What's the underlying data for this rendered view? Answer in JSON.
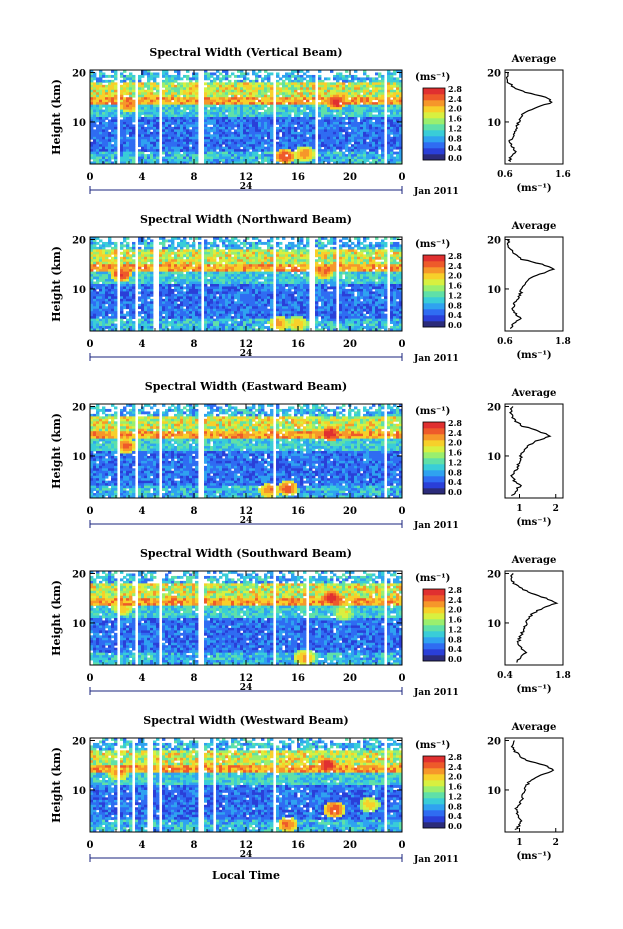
{
  "figure": {
    "date_label": "Jan 2011",
    "day_label": "24",
    "xlabel_bottom": "Local Time",
    "colorbar_unit": "(ms⁻¹)",
    "colorbar_ticks": [
      "0.0",
      "0.4",
      "0.8",
      "1.2",
      "1.6",
      "2.0",
      "2.4",
      "2.8"
    ],
    "colormap": [
      "#2b2b7a",
      "#2a3fd8",
      "#2f6cf2",
      "#2fa2f0",
      "#39cdd8",
      "#5fe0a8",
      "#9aef6e",
      "#d8f040",
      "#f7d02a",
      "#f6972a",
      "#ee5a2a",
      "#e03030"
    ],
    "avg_title": "Average",
    "avg_xunit": "(ms⁻¹)"
  },
  "chart_data": [
    {
      "type": "heatmap",
      "title": "Spectral Width (Vertical Beam)",
      "ylabel": "Height (km)",
      "x_ticks": [
        "0",
        "4",
        "8",
        "12",
        "16",
        "20",
        "0"
      ],
      "y_ticks": [
        "20",
        "10"
      ],
      "xlim": [
        0,
        24
      ],
      "ylim": [
        1.5,
        20.5
      ],
      "gaps_hours": [
        [
          2.0,
          2.3
        ],
        [
          3.4,
          3.6
        ],
        [
          5.3,
          5.6
        ],
        [
          8.4,
          8.8
        ],
        [
          14.1,
          14.4
        ],
        [
          17.2,
          17.5
        ],
        [
          22.6,
          22.9
        ]
      ],
      "hotspots": [
        {
          "t": 19.0,
          "h": 14.0,
          "v": 2.7
        },
        {
          "t": 15.0,
          "h": 3.0,
          "v": 2.6
        },
        {
          "t": 3.0,
          "h": 13.5,
          "v": 2.4
        },
        {
          "t": 16.5,
          "h": 3.5,
          "v": 2.3
        }
      ],
      "average_profile": {
        "xlim": [
          0.6,
          1.6
        ],
        "x_ticks": [
          "0.6",
          "1.6"
        ],
        "y_ticks": [
          "20",
          "10"
        ],
        "points": [
          [
            0.68,
            2
          ],
          [
            0.7,
            3
          ],
          [
            0.78,
            4
          ],
          [
            0.72,
            5
          ],
          [
            0.68,
            6
          ],
          [
            0.74,
            7
          ],
          [
            0.78,
            8
          ],
          [
            0.8,
            9
          ],
          [
            0.84,
            10
          ],
          [
            0.86,
            11
          ],
          [
            0.96,
            12
          ],
          [
            1.15,
            13
          ],
          [
            1.42,
            14
          ],
          [
            1.3,
            15
          ],
          [
            0.95,
            16
          ],
          [
            0.75,
            17
          ],
          [
            0.66,
            18
          ],
          [
            0.62,
            19
          ],
          [
            0.66,
            20
          ]
        ]
      }
    },
    {
      "type": "heatmap",
      "title": "Spectral Width (Northward Beam)",
      "ylabel": "Height (km)",
      "x_ticks": [
        "0",
        "4",
        "8",
        "12",
        "16",
        "20",
        "0"
      ],
      "y_ticks": [
        "20",
        "10"
      ],
      "xlim": [
        0,
        24
      ],
      "ylim": [
        1.5,
        20.5
      ],
      "gaps_hours": [
        [
          2.1,
          2.4
        ],
        [
          3.5,
          3.7
        ],
        [
          4.9,
          5.2
        ],
        [
          8.5,
          8.8
        ],
        [
          14.1,
          14.4
        ],
        [
          16.9,
          17.2
        ],
        [
          18.9,
          19.2
        ],
        [
          22.8,
          23.0
        ]
      ],
      "hotspots": [
        {
          "t": 2.4,
          "h": 13.0,
          "v": 2.6
        },
        {
          "t": 18.0,
          "h": 13.5,
          "v": 2.4
        },
        {
          "t": 14.5,
          "h": 3.0,
          "v": 2.2
        },
        {
          "t": 16.0,
          "h": 3.0,
          "v": 2.0
        }
      ],
      "average_profile": {
        "xlim": [
          0.6,
          1.8
        ],
        "x_ticks": [
          "0.6",
          "1.8"
        ],
        "y_ticks": [
          "20",
          "10"
        ],
        "points": [
          [
            0.72,
            2
          ],
          [
            0.78,
            3
          ],
          [
            0.92,
            4
          ],
          [
            0.82,
            5
          ],
          [
            0.76,
            6
          ],
          [
            0.8,
            7
          ],
          [
            0.86,
            8
          ],
          [
            0.92,
            9
          ],
          [
            0.94,
            10
          ],
          [
            1.0,
            11
          ],
          [
            1.1,
            12
          ],
          [
            1.32,
            13
          ],
          [
            1.62,
            14
          ],
          [
            1.35,
            15
          ],
          [
            0.95,
            16
          ],
          [
            0.8,
            17
          ],
          [
            0.72,
            18
          ],
          [
            0.64,
            19
          ],
          [
            0.7,
            20
          ]
        ]
      }
    },
    {
      "type": "heatmap",
      "title": "Spectral Width (Eastward Beam)",
      "ylabel": "Height (km)",
      "x_ticks": [
        "0",
        "4",
        "8",
        "12",
        "16",
        "20",
        "0"
      ],
      "y_ticks": [
        "20",
        "10"
      ],
      "xlim": [
        0,
        24
      ],
      "ylim": [
        1.5,
        20.5
      ],
      "gaps_hours": [
        [
          2.0,
          2.3
        ],
        [
          3.4,
          3.7
        ],
        [
          5.3,
          5.6
        ],
        [
          8.4,
          8.8
        ],
        [
          14.1,
          14.4
        ],
        [
          22.6,
          22.9
        ]
      ],
      "hotspots": [
        {
          "t": 18.5,
          "h": 14.5,
          "v": 2.8
        },
        {
          "t": 15.2,
          "h": 3.5,
          "v": 2.5
        },
        {
          "t": 13.8,
          "h": 3.0,
          "v": 2.3
        },
        {
          "t": 2.8,
          "h": 12.0,
          "v": 2.4
        }
      ],
      "average_profile": {
        "xlim": [
          0.6,
          2.2
        ],
        "x_ticks": [
          "1",
          "2"
        ],
        "y_ticks": [
          "20",
          "10"
        ],
        "points": [
          [
            0.8,
            2
          ],
          [
            0.9,
            3
          ],
          [
            1.02,
            4
          ],
          [
            0.86,
            5
          ],
          [
            0.8,
            6
          ],
          [
            0.9,
            7
          ],
          [
            0.96,
            8
          ],
          [
            1.0,
            9
          ],
          [
            1.04,
            10
          ],
          [
            1.1,
            11
          ],
          [
            1.2,
            12
          ],
          [
            1.45,
            13
          ],
          [
            1.85,
            14
          ],
          [
            1.55,
            15
          ],
          [
            1.1,
            16
          ],
          [
            0.9,
            17
          ],
          [
            0.8,
            18
          ],
          [
            0.76,
            19
          ],
          [
            0.82,
            20
          ]
        ]
      }
    },
    {
      "type": "heatmap",
      "title": "Spectral Width (Southward Beam)",
      "ylabel": "Height (km)",
      "x_ticks": [
        "0",
        "4",
        "8",
        "12",
        "16",
        "20",
        "0"
      ],
      "y_ticks": [
        "20",
        "10"
      ],
      "xlim": [
        0,
        24
      ],
      "ylim": [
        1.5,
        20.5
      ],
      "gaps_hours": [
        [
          2.0,
          2.3
        ],
        [
          3.4,
          3.7
        ],
        [
          5.3,
          5.5
        ],
        [
          8.4,
          8.7
        ],
        [
          14.1,
          14.4
        ],
        [
          16.6,
          16.8
        ],
        [
          22.6,
          22.9
        ]
      ],
      "hotspots": [
        {
          "t": 18.6,
          "h": 15.0,
          "v": 2.8
        },
        {
          "t": 16.5,
          "h": 3.0,
          "v": 2.2
        },
        {
          "t": 2.5,
          "h": 13.0,
          "v": 2.0
        },
        {
          "t": 19.5,
          "h": 12.0,
          "v": 1.8
        }
      ],
      "average_profile": {
        "xlim": [
          0.4,
          1.8
        ],
        "x_ticks": [
          "0.4",
          "1.8"
        ],
        "y_ticks": [
          "20",
          "10"
        ],
        "points": [
          [
            0.66,
            2
          ],
          [
            0.76,
            3
          ],
          [
            0.9,
            4
          ],
          [
            0.78,
            5
          ],
          [
            0.72,
            6
          ],
          [
            0.76,
            7
          ],
          [
            0.82,
            8
          ],
          [
            0.88,
            9
          ],
          [
            0.92,
            10
          ],
          [
            0.98,
            11
          ],
          [
            1.08,
            12
          ],
          [
            1.3,
            13
          ],
          [
            1.62,
            14
          ],
          [
            1.4,
            15
          ],
          [
            1.05,
            16
          ],
          [
            0.8,
            17
          ],
          [
            0.62,
            18
          ],
          [
            0.55,
            19
          ],
          [
            0.6,
            20
          ]
        ]
      }
    },
    {
      "type": "heatmap",
      "title": "Spectral Width (Westward Beam)",
      "ylabel": "Height (km)",
      "x_ticks": [
        "0",
        "4",
        "8",
        "12",
        "16",
        "20",
        "0"
      ],
      "y_ticks": [
        "20",
        "10"
      ],
      "xlim": [
        0,
        24
      ],
      "ylim": [
        1.5,
        20.5
      ],
      "gaps_hours": [
        [
          2.0,
          2.3
        ],
        [
          3.3,
          3.5
        ],
        [
          4.5,
          4.8
        ],
        [
          5.3,
          5.6
        ],
        [
          8.4,
          8.8
        ],
        [
          9.5,
          9.7
        ],
        [
          14.1,
          14.4
        ],
        [
          22.6,
          22.9
        ]
      ],
      "hotspots": [
        {
          "t": 18.2,
          "h": 15.0,
          "v": 2.8
        },
        {
          "t": 18.8,
          "h": 6.0,
          "v": 2.6
        },
        {
          "t": 15.2,
          "h": 3.0,
          "v": 2.4
        },
        {
          "t": 2.2,
          "h": 13.5,
          "v": 2.2
        },
        {
          "t": 21.5,
          "h": 7.0,
          "v": 2.0
        }
      ],
      "average_profile": {
        "xlim": [
          0.6,
          2.2
        ],
        "x_ticks": [
          "1",
          "2"
        ],
        "y_ticks": [
          "20",
          "10"
        ],
        "points": [
          [
            0.9,
            2
          ],
          [
            1.0,
            3
          ],
          [
            1.06,
            4
          ],
          [
            0.94,
            5
          ],
          [
            0.9,
            6
          ],
          [
            0.98,
            7
          ],
          [
            1.06,
            8
          ],
          [
            1.1,
            9
          ],
          [
            1.14,
            10
          ],
          [
            1.2,
            11
          ],
          [
            1.32,
            12
          ],
          [
            1.58,
            13
          ],
          [
            1.95,
            14
          ],
          [
            1.7,
            15
          ],
          [
            1.2,
            16
          ],
          [
            0.98,
            17
          ],
          [
            0.86,
            18
          ],
          [
            0.8,
            19
          ],
          [
            0.86,
            20
          ]
        ]
      }
    }
  ]
}
